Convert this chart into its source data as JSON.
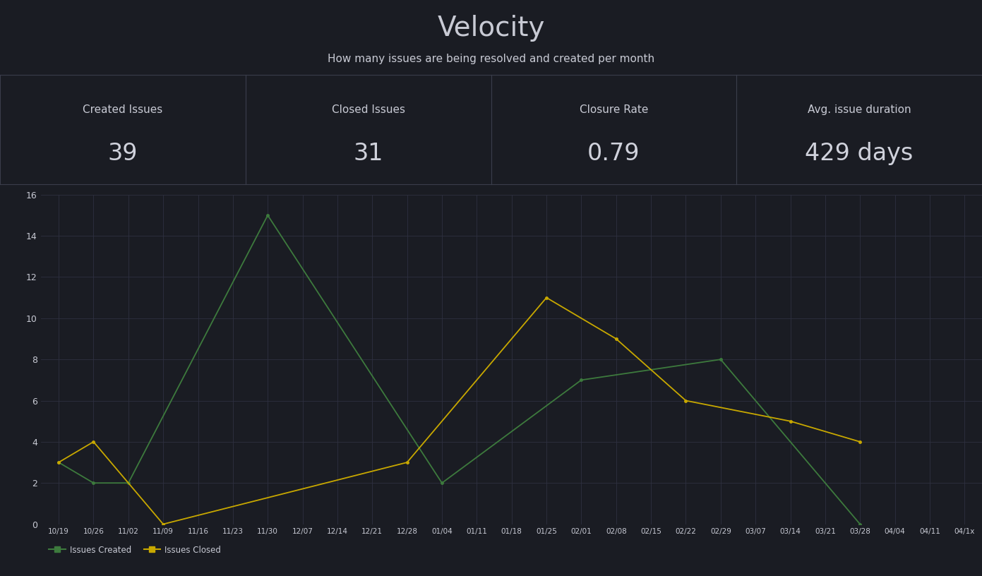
{
  "title": "Velocity",
  "subtitle": "How many issues are being resolved and created per month",
  "stat_labels": [
    "Created Issues",
    "Closed Issues",
    "Closure Rate",
    "Avg. issue duration"
  ],
  "stat_values": [
    "39",
    "31",
    "0.79",
    "429 days"
  ],
  "stat_bar_colors": [
    "#e8607a",
    "#4caf50",
    "#e8b84b",
    "#4f8fcc"
  ],
  "x_labels": [
    "10/19",
    "10/26",
    "11/02",
    "11/09",
    "11/16",
    "11/23",
    "11/30",
    "12/07",
    "12/14",
    "12/21",
    "12/28",
    "01/04",
    "01/11",
    "01/18",
    "01/25",
    "02/01",
    "02/08",
    "02/15",
    "02/22",
    "02/29",
    "03/07",
    "03/14",
    "03/21",
    "03/28",
    "04/04",
    "04/11",
    "04/1x"
  ],
  "issues_created": [
    3,
    2,
    2,
    null,
    null,
    null,
    15,
    null,
    null,
    null,
    null,
    2,
    null,
    null,
    null,
    7,
    null,
    null,
    null,
    8,
    null,
    null,
    null,
    0,
    null,
    null,
    null
  ],
  "issues_closed": [
    3,
    4,
    null,
    0,
    null,
    null,
    null,
    null,
    null,
    null,
    3,
    null,
    null,
    null,
    11,
    null,
    9,
    null,
    6,
    null,
    null,
    5,
    null,
    4,
    null,
    null,
    null
  ],
  "bg_color": "#1a1c23",
  "panel_bg_color": "#1e2028",
  "panel_border_color": "#3a3d4a",
  "grid_color": "#2e3040",
  "text_color": "#c8cad4",
  "value_color": "#d0d2dc",
  "line_created_color": "#3d7a3d",
  "line_closed_color": "#c8a800",
  "ylim": [
    0,
    16
  ],
  "yticks": [
    0,
    2,
    4,
    6,
    8,
    10,
    12,
    14,
    16
  ]
}
